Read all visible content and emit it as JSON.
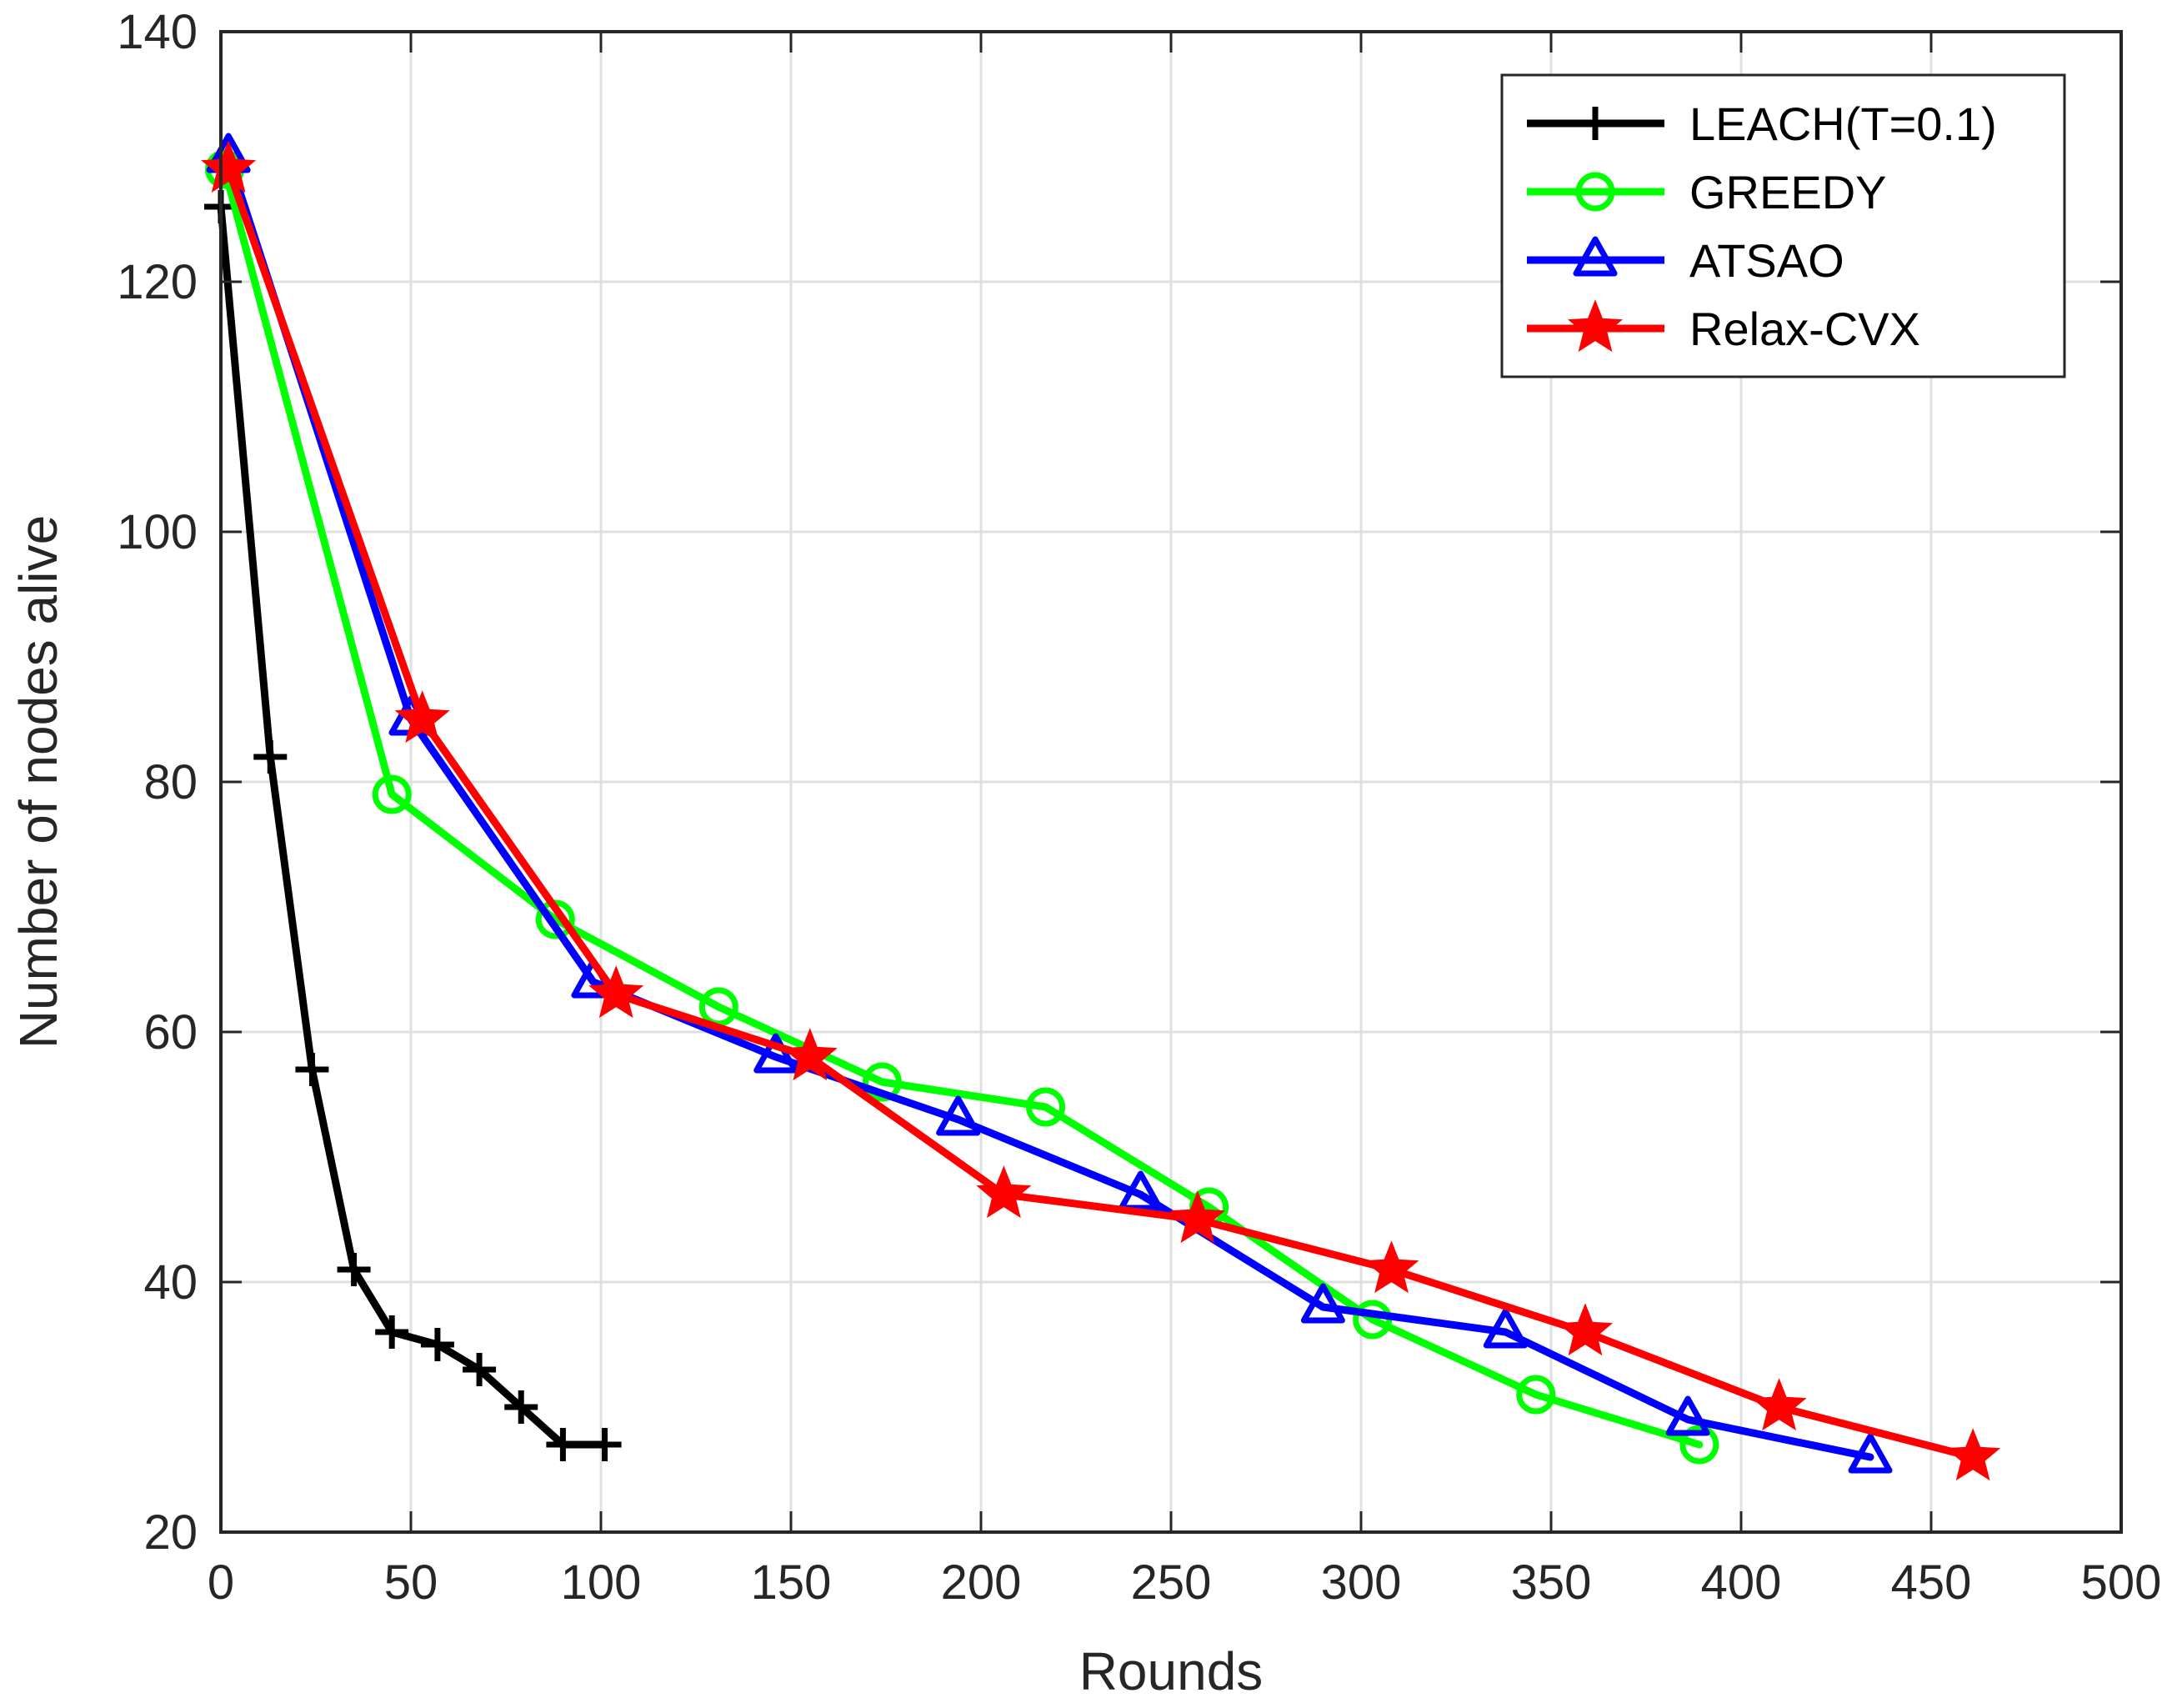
{
  "chart_data": {
    "type": "line",
    "title": "",
    "xlabel": "Rounds",
    "ylabel": "Number of nodes alive",
    "xlim": [
      0,
      500
    ],
    "ylim": [
      20,
      140
    ],
    "xticks": [
      0,
      50,
      100,
      150,
      200,
      250,
      300,
      350,
      400,
      450,
      500
    ],
    "yticks": [
      20,
      40,
      60,
      80,
      100,
      120,
      140
    ],
    "grid": true,
    "legend_position": "top-right",
    "series": [
      {
        "name": "LEACH(T=0.1)",
        "color": "#000000",
        "marker": "plus",
        "x": [
          0,
          13,
          24,
          35,
          45,
          57,
          68,
          79,
          90,
          101
        ],
        "y": [
          126,
          82,
          57,
          41,
          36,
          35,
          33,
          30,
          27,
          27
        ]
      },
      {
        "name": "GREEDY",
        "color": "#00ff00",
        "marker": "circle",
        "x": [
          1,
          45,
          88,
          131,
          174,
          217,
          260,
          303,
          346,
          389
        ],
        "y": [
          129,
          79,
          69,
          62,
          56,
          54,
          46,
          37,
          31,
          27
        ]
      },
      {
        "name": "ATSAO",
        "color": "#0000ff",
        "marker": "triangle",
        "x": [
          2,
          50,
          98,
          146,
          194,
          242,
          290,
          338,
          386,
          434
        ],
        "y": [
          130,
          85,
          64,
          58,
          53,
          47,
          38,
          36,
          29,
          26
        ]
      },
      {
        "name": "Relax-CVX",
        "color": "#ff0000",
        "marker": "star",
        "x": [
          2,
          53,
          104,
          155,
          206,
          257,
          308,
          359,
          410,
          461
        ],
        "y": [
          129,
          85,
          63,
          58,
          47,
          45,
          41,
          36,
          30,
          26
        ]
      }
    ]
  }
}
